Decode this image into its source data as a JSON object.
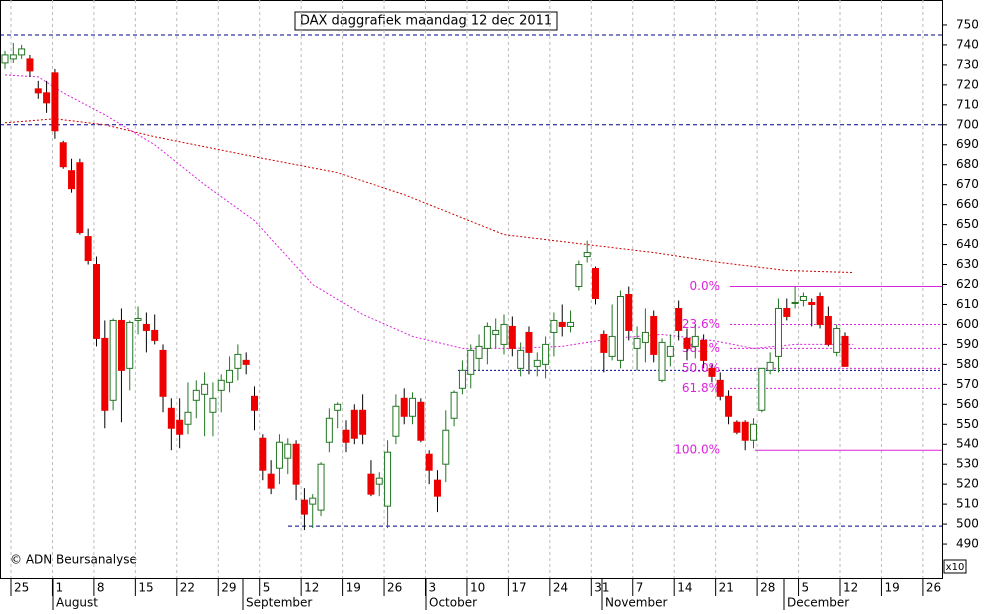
{
  "chart_data": {
    "type": "candlestick",
    "title": "DAX daggrafiek maandag 12 dec 2011",
    "copyright": "© ADN Beursanalyse",
    "scale_note": "x10",
    "ylim": [
      473,
      762.5
    ],
    "yticks": [
      490,
      500,
      510,
      520,
      530,
      540,
      550,
      560,
      570,
      580,
      590,
      600,
      610,
      620,
      630,
      640,
      650,
      660,
      670,
      680,
      690,
      700,
      710,
      720,
      730,
      740,
      750
    ],
    "week_labels": [
      "25",
      "1",
      "8",
      "15",
      "22",
      "29",
      "5",
      "12",
      "19",
      "26",
      "3",
      "10",
      "17",
      "24",
      "31",
      "7",
      "14",
      "21",
      "28",
      "5",
      "12",
      "19",
      "26"
    ],
    "months": [
      "August",
      "September",
      "October",
      "November",
      "December"
    ],
    "candles": [
      [
        731,
        737,
        728,
        735
      ],
      [
        733,
        741,
        731,
        735
      ],
      [
        735,
        740,
        733,
        738
      ],
      [
        733,
        735,
        724,
        727
      ],
      [
        718,
        722,
        713,
        716
      ],
      [
        716,
        722,
        706,
        711
      ],
      [
        726,
        728,
        693,
        697
      ],
      [
        691,
        692,
        678,
        679
      ],
      [
        677,
        683,
        666,
        668
      ],
      [
        681,
        683,
        645,
        646
      ],
      [
        644,
        648,
        630,
        632
      ],
      [
        630,
        634,
        589,
        593
      ],
      [
        593,
        602,
        548,
        557
      ],
      [
        562,
        603,
        557,
        602
      ],
      [
        602,
        608,
        551,
        577
      ],
      [
        578,
        602,
        567,
        601
      ],
      [
        602,
        609,
        595,
        603
      ],
      [
        600,
        606,
        586,
        597
      ],
      [
        597,
        605,
        590,
        592
      ],
      [
        587,
        590,
        556,
        564
      ],
      [
        558,
        563,
        537,
        548
      ],
      [
        552,
        563,
        538,
        545
      ],
      [
        550,
        571,
        545,
        556
      ],
      [
        562,
        572,
        553,
        567
      ],
      [
        565,
        576,
        544,
        570
      ],
      [
        556,
        571,
        544,
        563
      ],
      [
        567,
        575,
        556,
        572
      ],
      [
        571,
        584,
        566,
        577
      ],
      [
        578,
        590,
        572,
        585
      ],
      [
        582,
        586,
        575,
        580
      ],
      [
        564,
        569,
        547,
        557
      ],
      [
        543,
        545,
        522,
        527
      ],
      [
        525,
        532,
        515,
        518
      ],
      [
        528,
        545,
        520,
        541
      ],
      [
        533,
        543,
        525,
        540
      ],
      [
        540,
        542,
        512,
        520
      ],
      [
        512,
        518,
        497,
        505
      ],
      [
        510,
        515,
        498,
        513
      ],
      [
        507,
        531,
        504,
        530
      ],
      [
        541,
        558,
        536,
        553
      ],
      [
        557,
        561,
        548,
        560
      ],
      [
        547,
        552,
        536,
        541
      ],
      [
        557,
        560,
        540,
        543
      ],
      [
        557,
        565,
        540,
        545
      ],
      [
        525,
        532,
        514,
        515
      ],
      [
        520,
        526,
        514,
        523
      ],
      [
        509,
        542,
        498,
        536
      ],
      [
        544,
        565,
        540,
        559
      ],
      [
        563,
        568,
        550,
        554
      ],
      [
        554,
        566,
        550,
        563
      ],
      [
        561,
        563,
        541,
        542
      ],
      [
        535,
        537,
        520,
        527
      ],
      [
        522,
        527,
        506,
        514
      ],
      [
        530,
        557,
        521,
        547
      ],
      [
        553,
        567,
        549,
        566
      ],
      [
        568,
        582,
        565,
        577
      ],
      [
        575,
        590,
        568,
        587
      ],
      [
        583,
        595,
        577,
        589
      ],
      [
        588,
        601,
        580,
        599
      ],
      [
        595,
        603,
        588,
        597
      ],
      [
        590,
        605,
        585,
        600
      ],
      [
        599,
        604,
        584,
        588
      ],
      [
        578,
        591,
        574,
        587
      ],
      [
        596,
        599,
        575,
        586
      ],
      [
        579,
        586,
        574,
        582
      ],
      [
        580,
        594,
        573,
        590
      ],
      [
        596,
        606,
        584,
        602
      ],
      [
        601,
        610,
        594,
        599
      ],
      [
        599,
        607,
        596,
        601
      ],
      [
        619,
        632,
        617,
        630
      ],
      [
        634,
        642,
        631,
        636
      ],
      [
        628,
        629,
        610,
        613
      ],
      [
        595,
        597,
        576,
        586
      ],
      [
        584,
        610,
        582,
        594
      ],
      [
        582,
        617,
        578,
        614
      ],
      [
        615,
        619,
        592,
        597
      ],
      [
        588,
        599,
        577,
        593
      ],
      [
        591,
        608,
        581,
        596
      ],
      [
        604,
        607,
        581,
        585
      ],
      [
        572,
        593,
        571,
        591
      ],
      [
        584,
        595,
        579,
        589
      ],
      [
        608,
        612,
        592,
        597
      ],
      [
        593,
        598,
        582,
        588
      ],
      [
        589,
        600,
        583,
        594
      ],
      [
        592,
        595,
        578,
        582
      ],
      [
        578,
        580,
        571,
        574
      ],
      [
        572,
        576,
        562,
        564
      ],
      [
        564,
        567,
        550,
        554
      ],
      [
        551,
        552,
        545,
        546
      ],
      [
        551,
        552,
        537,
        542
      ],
      [
        542,
        553,
        538,
        550
      ],
      [
        557,
        578,
        556,
        578
      ],
      [
        577,
        586,
        575,
        581
      ],
      [
        584,
        613,
        576,
        608
      ],
      [
        608,
        613,
        602,
        604
      ],
      [
        611,
        619,
        608,
        611
      ],
      [
        612,
        616,
        609,
        614
      ],
      [
        611,
        613,
        599,
        610
      ],
      [
        614,
        616,
        598,
        600
      ],
      [
        604,
        609,
        589,
        590
      ],
      [
        586,
        600,
        584,
        598
      ],
      [
        594,
        596,
        579,
        579
      ]
    ],
    "moving_averages": [
      {
        "color": "#cc0000",
        "x": [
          0,
          6,
          12,
          18,
          30,
          40,
          48,
          54,
          60,
          70,
          78,
          86,
          94,
          102
        ],
        "values": [
          701,
          703,
          700,
          694,
          684,
          676,
          665,
          655,
          645,
          640,
          636,
          631,
          627,
          626
        ]
      },
      {
        "color": "#dd22dd",
        "x": [
          0,
          4,
          7,
          12,
          18,
          24,
          30,
          37,
          43,
          49,
          55,
          61,
          67,
          73,
          79,
          85,
          90,
          95,
          102
        ],
        "values": [
          725,
          724,
          716,
          705,
          690,
          670,
          652,
          620,
          605,
          594,
          588,
          588,
          589,
          593,
          595,
          592,
          588,
          590,
          590
        ]
      }
    ],
    "levels": [
      745,
      700,
      499,
      577
    ],
    "fibonacci": {
      "labels": [
        "0.0%",
        "23.6%",
        "38.2%",
        "50.0%",
        "61.8%",
        "100.0%"
      ],
      "values": [
        619,
        600,
        588,
        578,
        568,
        537
      ]
    }
  }
}
